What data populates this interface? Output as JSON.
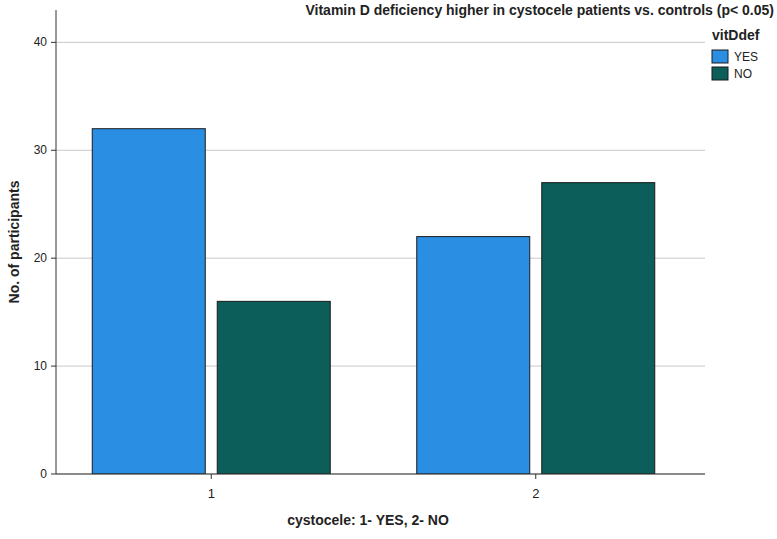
{
  "chart_data": {
    "type": "bar",
    "title": "Vitamin D deficiency higher in cystocele patients vs. controls (p< 0.05)",
    "x_label": "cystocele: 1- YES, 2- NO",
    "y_label": "No. of participants",
    "legend_title": "vitDdef",
    "categories": [
      "1",
      "2"
    ],
    "series": [
      {
        "name": "YES",
        "color": "#2a8fe3",
        "values": [
          32,
          22
        ]
      },
      {
        "name": "NO",
        "color": "#0b5e59",
        "values": [
          16,
          27
        ]
      }
    ],
    "ylim": [
      0,
      43
    ],
    "yticks": [
      0,
      10,
      20,
      30,
      40
    ],
    "grid": true,
    "legend": "upper right"
  }
}
